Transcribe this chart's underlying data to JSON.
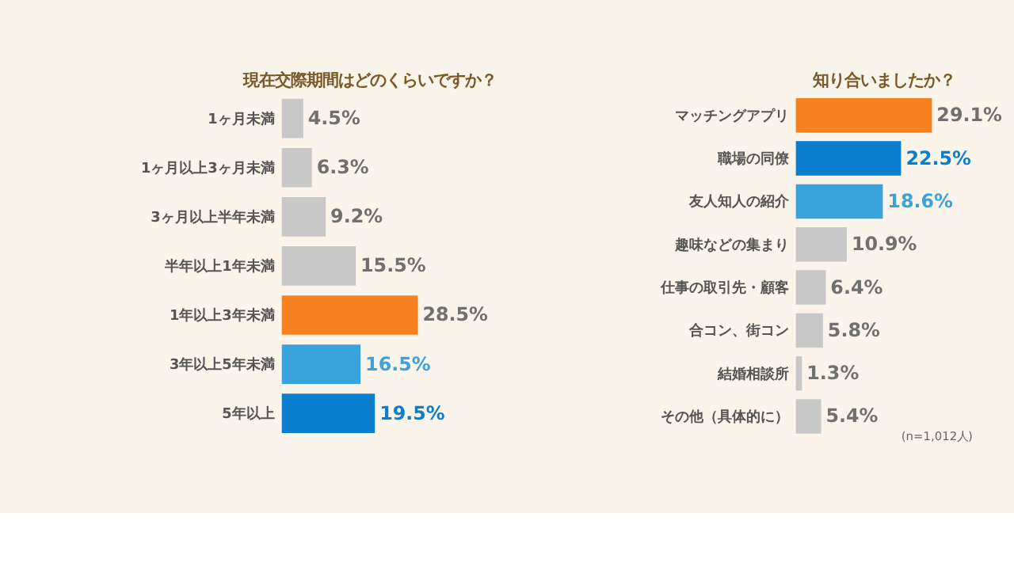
{
  "chart_data": [
    {
      "type": "bar",
      "orientation": "horizontal",
      "title": "現在交際期間はどのくらいですか？",
      "categories": [
        "1ヶ月未満",
        "1ヶ月以上3ヶ月未満",
        "3ヶ月以上半年未満",
        "半年以上1年未満",
        "1年以上3年未満",
        "3年以上5年未満",
        "5年以上"
      ],
      "values": [
        4.5,
        6.3,
        9.2,
        15.5,
        28.5,
        16.5,
        19.5
      ],
      "value_labels": [
        "4.5%",
        "6.3%",
        "9.2%",
        "15.5%",
        "28.5%",
        "16.5%",
        "19.5%"
      ],
      "colors": [
        "#c8c8c8",
        "#c8c8c8",
        "#c8c8c8",
        "#c8c8c8",
        "#f5821f",
        "#3aa3dc",
        "#0a7fcf"
      ]
    },
    {
      "type": "bar",
      "orientation": "horizontal",
      "title": "知り合いましたか？",
      "categories": [
        "マッチングアプリ",
        "職場の同僚",
        "友人知人の紹介",
        "趣味などの集まり",
        "仕事の取引先・顧客",
        "合コン、街コン",
        "結婚相談所",
        "その他（具体的に）"
      ],
      "values": [
        29.1,
        22.5,
        18.6,
        10.9,
        6.4,
        5.8,
        1.3,
        5.4
      ],
      "value_labels": [
        "29.1%",
        "22.5%",
        "18.6%",
        "10.9%",
        "6.4%",
        "5.8%",
        "1.3%",
        "5.4%"
      ],
      "colors": [
        "#f5821f",
        "#0a7fcf",
        "#3aa3dc",
        "#c8c8c8",
        "#c8c8c8",
        "#c8c8c8",
        "#c8c8c8",
        "#c8c8c8"
      ],
      "annotations": [
        "(n=1,012人)"
      ]
    }
  ]
}
